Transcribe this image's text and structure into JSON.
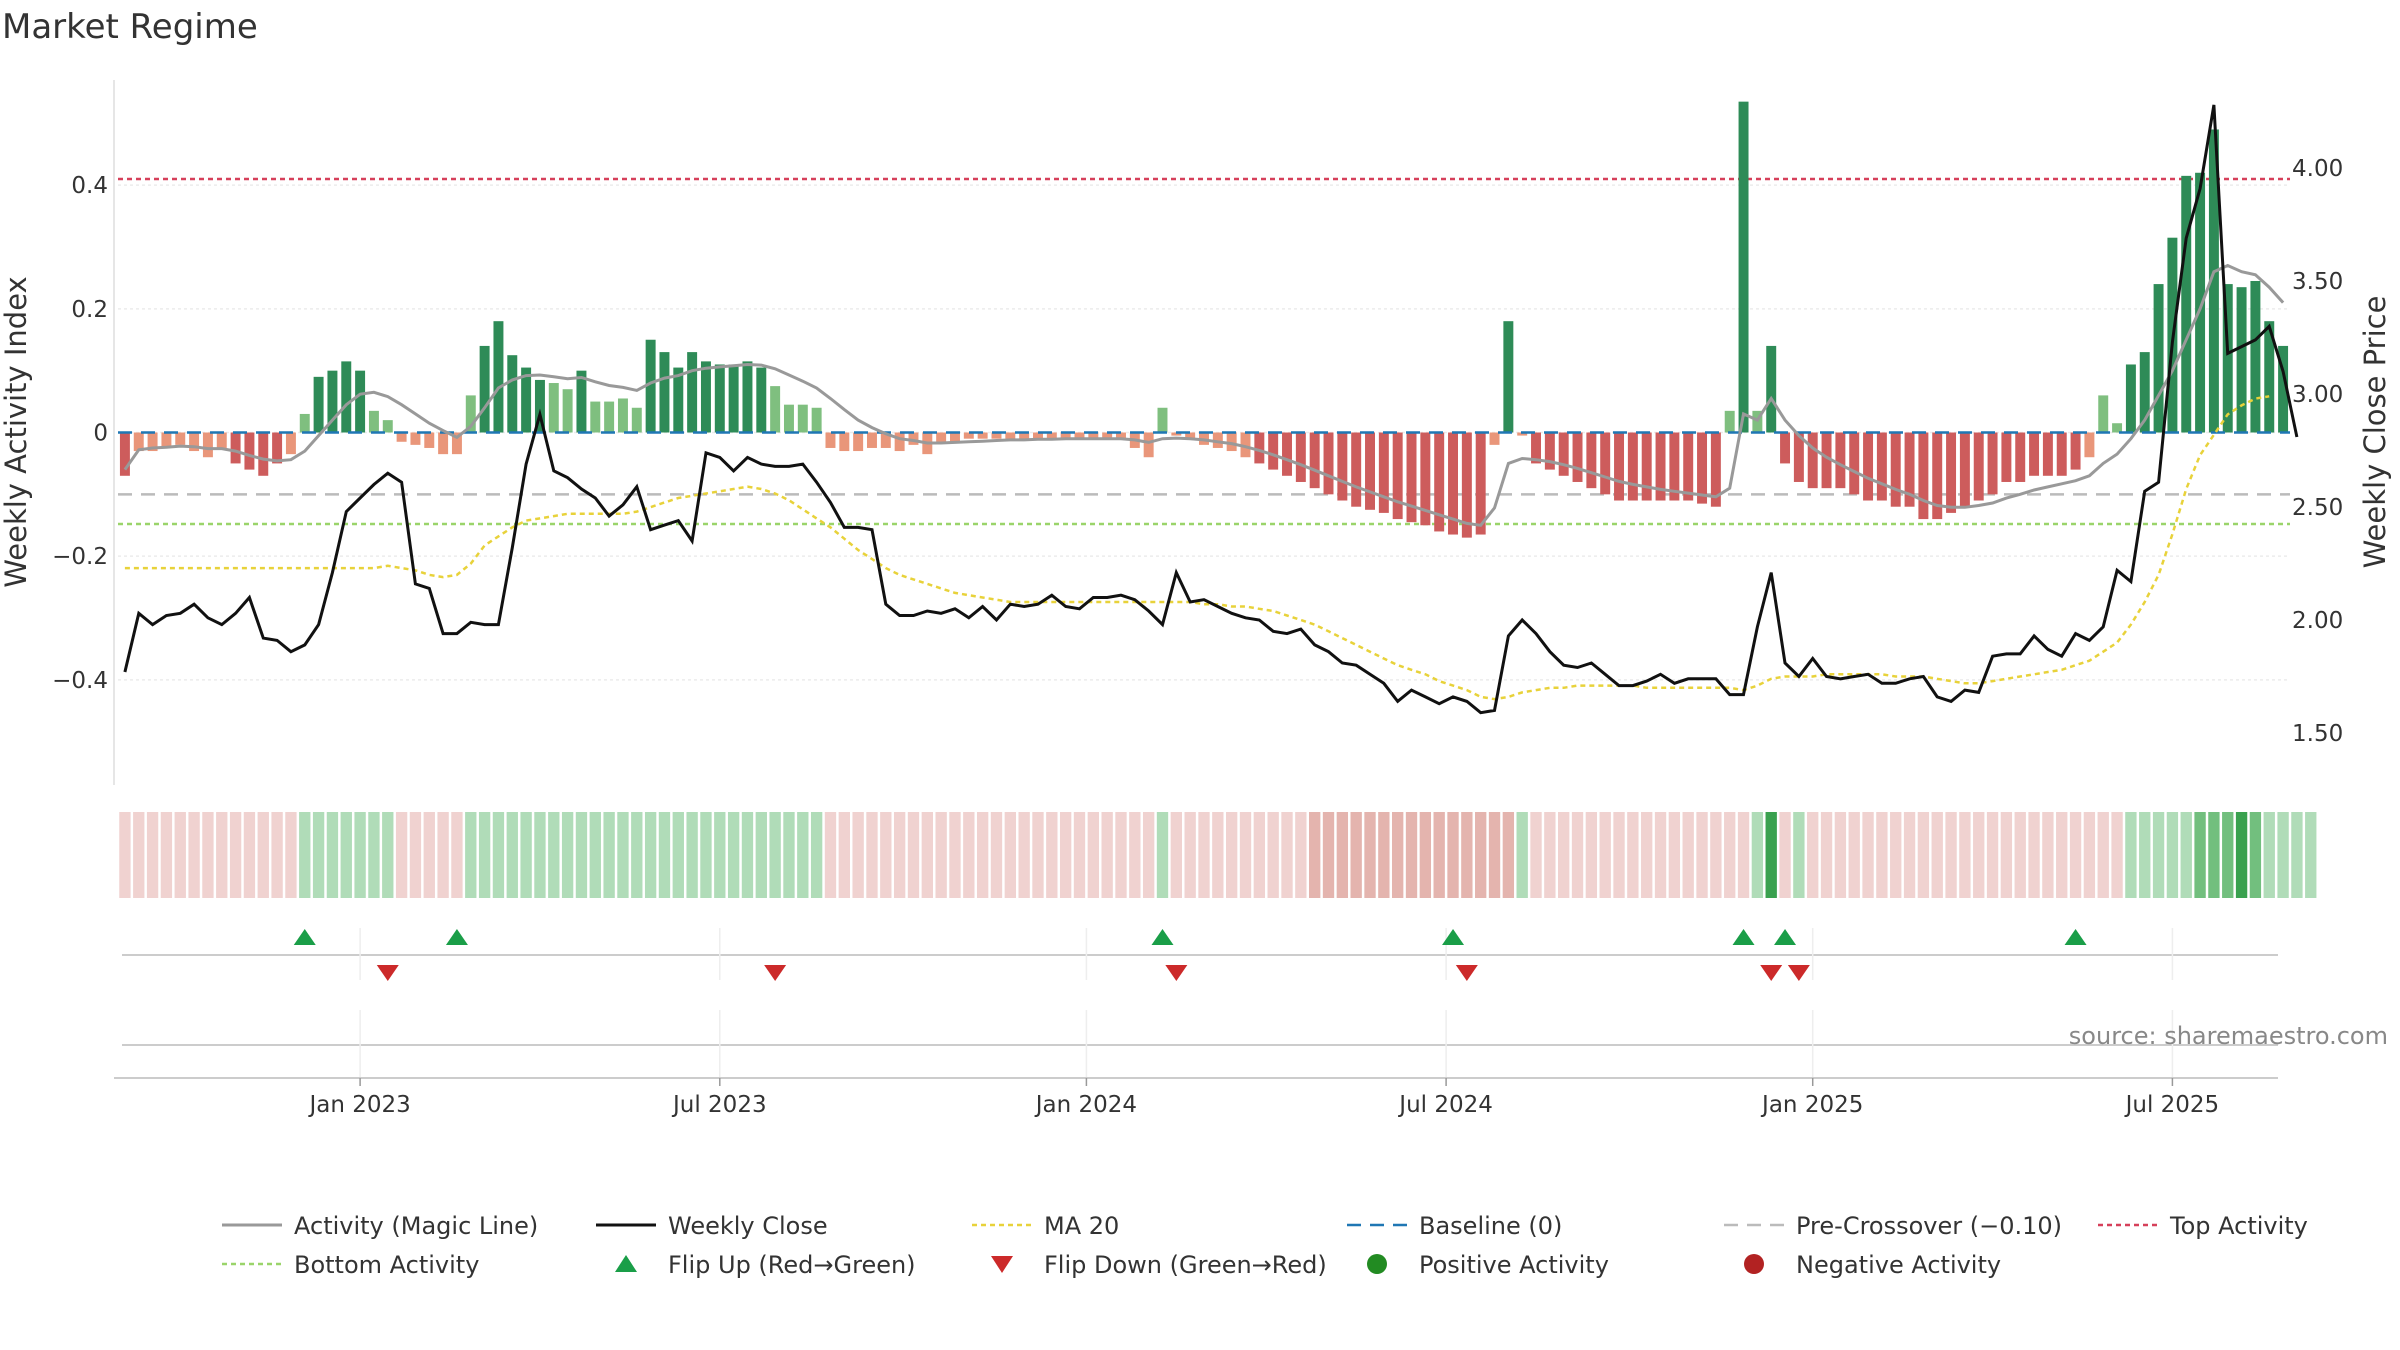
{
  "chart_data": {
    "type": "bar",
    "title": "Market Regime",
    "source": "source: sharemaestro.com",
    "y_left": {
      "label": "Weekly Activity Index",
      "range": [
        -0.57,
        0.57
      ],
      "ticks": [
        0.4,
        0.2,
        0,
        -0.2,
        -0.4
      ],
      "tick_labels": [
        "0.4",
        "0.2",
        "0",
        "−0.2",
        "−0.4"
      ]
    },
    "y_right": {
      "label": "Weekly Close Price",
      "range": [
        1.27,
        4.39
      ],
      "ticks": [
        4.0,
        3.5,
        3.0,
        2.5,
        2.0,
        1.5
      ],
      "tick_labels": [
        "4.00",
        "3.50",
        "3.00",
        "2.50",
        "2.00",
        "1.50"
      ]
    },
    "x_ticks": [
      {
        "label": "Jan 2023",
        "week": 17
      },
      {
        "label": "Jul 2023",
        "week": 43
      },
      {
        "label": "Jan 2024",
        "week": 69.5
      },
      {
        "label": "Jul 2024",
        "week": 95.5
      },
      {
        "label": "Jan 2025",
        "week": 122
      },
      {
        "label": "Jul 2025",
        "week": 148
      }
    ],
    "levels": {
      "top_activity": 0.41,
      "bottom_activity": -0.148,
      "pre_crossover": -0.1,
      "baseline": 0
    },
    "activity": [
      -0.07,
      -0.03,
      -0.03,
      -0.025,
      -0.02,
      -0.03,
      -0.04,
      -0.025,
      -0.05,
      -0.06,
      -0.07,
      -0.05,
      -0.035,
      0.03,
      0.09,
      0.1,
      0.115,
      0.1,
      0.035,
      0.02,
      -0.015,
      -0.02,
      -0.025,
      -0.035,
      -0.035,
      0.06,
      0.14,
      0.18,
      0.125,
      0.105,
      0.085,
      0.08,
      0.07,
      0.1,
      0.05,
      0.05,
      0.055,
      0.04,
      0.15,
      0.13,
      0.105,
      0.13,
      0.115,
      0.11,
      0.11,
      0.115,
      0.105,
      0.075,
      0.045,
      0.045,
      0.04,
      -0.025,
      -0.03,
      -0.03,
      -0.025,
      -0.025,
      -0.03,
      -0.02,
      -0.035,
      -0.015,
      -0.015,
      -0.01,
      -0.01,
      -0.01,
      -0.01,
      -0.01,
      -0.01,
      -0.01,
      -0.01,
      -0.01,
      -0.01,
      -0.01,
      -0.01,
      -0.025,
      -0.04,
      0.04,
      -0.005,
      -0.01,
      -0.02,
      -0.025,
      -0.03,
      -0.04,
      -0.05,
      -0.06,
      -0.07,
      -0.08,
      -0.09,
      -0.1,
      -0.11,
      -0.12,
      -0.125,
      -0.13,
      -0.14,
      -0.145,
      -0.15,
      -0.16,
      -0.165,
      -0.17,
      -0.165,
      -0.02,
      0.18,
      -0.005,
      -0.05,
      -0.06,
      -0.07,
      -0.08,
      -0.09,
      -0.1,
      -0.11,
      -0.11,
      -0.11,
      -0.11,
      -0.11,
      -0.11,
      -0.115,
      -0.12,
      0.035,
      0.535,
      0.035,
      0.14,
      -0.05,
      -0.08,
      -0.09,
      -0.09,
      -0.09,
      -0.1,
      -0.11,
      -0.11,
      -0.12,
      -0.12,
      -0.14,
      -0.14,
      -0.13,
      -0.12,
      -0.11,
      -0.1,
      -0.08,
      -0.08,
      -0.07,
      -0.07,
      -0.07,
      -0.06,
      -0.04,
      0.06,
      0.015,
      0.11,
      0.13,
      0.24,
      0.315,
      0.415,
      0.42,
      0.49,
      0.24,
      0.235,
      0.245,
      0.18,
      0.14
    ],
    "magic_line": [
      -0.06,
      -0.028,
      -0.025,
      -0.024,
      -0.022,
      -0.023,
      -0.026,
      -0.026,
      -0.03,
      -0.037,
      -0.043,
      -0.046,
      -0.044,
      -0.03,
      -0.005,
      0.02,
      0.045,
      0.062,
      0.065,
      0.058,
      0.045,
      0.03,
      0.015,
      0.003,
      -0.008,
      0.01,
      0.04,
      0.072,
      0.085,
      0.092,
      0.093,
      0.09,
      0.087,
      0.089,
      0.082,
      0.076,
      0.073,
      0.068,
      0.08,
      0.088,
      0.092,
      0.1,
      0.104,
      0.106,
      0.108,
      0.11,
      0.109,
      0.103,
      0.093,
      0.083,
      0.072,
      0.055,
      0.037,
      0.02,
      0.008,
      -0.002,
      -0.01,
      -0.013,
      -0.017,
      -0.017,
      -0.016,
      -0.015,
      -0.014,
      -0.013,
      -0.012,
      -0.012,
      -0.011,
      -0.011,
      -0.01,
      -0.01,
      -0.01,
      -0.01,
      -0.01,
      -0.012,
      -0.016,
      -0.01,
      -0.009,
      -0.01,
      -0.012,
      -0.015,
      -0.018,
      -0.023,
      -0.029,
      -0.036,
      -0.044,
      -0.052,
      -0.061,
      -0.07,
      -0.079,
      -0.088,
      -0.096,
      -0.104,
      -0.112,
      -0.119,
      -0.126,
      -0.133,
      -0.14,
      -0.147,
      -0.15,
      -0.122,
      -0.05,
      -0.042,
      -0.044,
      -0.047,
      -0.052,
      -0.058,
      -0.065,
      -0.072,
      -0.079,
      -0.084,
      -0.088,
      -0.092,
      -0.095,
      -0.098,
      -0.101,
      -0.104,
      -0.09,
      0.03,
      0.02,
      0.055,
      0.02,
      -0.005,
      -0.025,
      -0.04,
      -0.052,
      -0.063,
      -0.074,
      -0.083,
      -0.092,
      -0.1,
      -0.11,
      -0.118,
      -0.121,
      -0.121,
      -0.118,
      -0.114,
      -0.106,
      -0.1,
      -0.093,
      -0.088,
      -0.083,
      -0.078,
      -0.07,
      -0.05,
      -0.035,
      -0.01,
      0.02,
      0.06,
      0.1,
      0.15,
      0.2,
      0.26,
      0.27,
      0.26,
      0.255,
      0.235,
      0.21
    ],
    "close": [
      1.77,
      2.03,
      1.98,
      2.02,
      2.03,
      2.07,
      2.01,
      1.98,
      2.03,
      2.1,
      1.92,
      1.91,
      1.86,
      1.89,
      1.98,
      2.21,
      2.48,
      2.54,
      2.6,
      2.65,
      2.61,
      2.16,
      2.14,
      1.94,
      1.94,
      1.99,
      1.98,
      1.98,
      2.32,
      2.69,
      2.91,
      2.66,
      2.63,
      2.58,
      2.54,
      2.46,
      2.51,
      2.59,
      2.4,
      2.42,
      2.44,
      2.35,
      2.74,
      2.72,
      2.66,
      2.72,
      2.69,
      2.68,
      2.68,
      2.69,
      2.61,
      2.52,
      2.41,
      2.41,
      2.4,
      2.07,
      2.02,
      2.02,
      2.04,
      2.03,
      2.05,
      2.01,
      2.06,
      2.0,
      2.07,
      2.06,
      2.07,
      2.11,
      2.06,
      2.05,
      2.1,
      2.1,
      2.11,
      2.09,
      2.04,
      1.98,
      2.21,
      2.08,
      2.09,
      2.06,
      2.03,
      2.01,
      2.0,
      1.95,
      1.94,
      1.96,
      1.89,
      1.86,
      1.81,
      1.8,
      1.76,
      1.72,
      1.64,
      1.69,
      1.66,
      1.63,
      1.66,
      1.64,
      1.59,
      1.6,
      1.93,
      2.0,
      1.94,
      1.86,
      1.8,
      1.79,
      1.81,
      1.76,
      1.71,
      1.71,
      1.73,
      1.76,
      1.72,
      1.74,
      1.74,
      1.74,
      1.67,
      1.67,
      1.97,
      2.21,
      1.81,
      1.75,
      1.83,
      1.75,
      1.74,
      1.75,
      1.76,
      1.72,
      1.72,
      1.74,
      1.75,
      1.66,
      1.64,
      1.69,
      1.68,
      1.84,
      1.85,
      1.85,
      1.93,
      1.87,
      1.84,
      1.94,
      1.91,
      1.97,
      2.22,
      2.17,
      2.57,
      2.61,
      3.23,
      3.69,
      3.91,
      4.28,
      3.18,
      3.21,
      3.24,
      3.3,
      3.1,
      2.81
    ],
    "ma20": [
      2.23,
      2.23,
      2.23,
      2.23,
      2.23,
      2.23,
      2.23,
      2.23,
      2.23,
      2.23,
      2.23,
      2.23,
      2.23,
      2.23,
      2.23,
      2.23,
      2.23,
      2.23,
      2.23,
      2.24,
      2.23,
      2.22,
      2.2,
      2.19,
      2.2,
      2.25,
      2.33,
      2.37,
      2.41,
      2.44,
      2.45,
      2.46,
      2.47,
      2.47,
      2.47,
      2.47,
      2.47,
      2.48,
      2.5,
      2.52,
      2.54,
      2.55,
      2.56,
      2.57,
      2.58,
      2.59,
      2.58,
      2.56,
      2.53,
      2.49,
      2.45,
      2.41,
      2.36,
      2.31,
      2.27,
      2.23,
      2.2,
      2.18,
      2.16,
      2.14,
      2.12,
      2.11,
      2.1,
      2.09,
      2.08,
      2.08,
      2.08,
      2.08,
      2.08,
      2.08,
      2.08,
      2.08,
      2.08,
      2.08,
      2.08,
      2.08,
      2.08,
      2.08,
      2.07,
      2.07,
      2.06,
      2.06,
      2.05,
      2.04,
      2.02,
      2.0,
      1.98,
      1.95,
      1.92,
      1.89,
      1.86,
      1.83,
      1.8,
      1.78,
      1.76,
      1.73,
      1.71,
      1.69,
      1.66,
      1.65,
      1.66,
      1.68,
      1.69,
      1.7,
      1.7,
      1.71,
      1.71,
      1.71,
      1.71,
      1.71,
      1.7,
      1.7,
      1.7,
      1.7,
      1.7,
      1.7,
      1.7,
      1.69,
      1.71,
      1.74,
      1.75,
      1.75,
      1.75,
      1.76,
      1.76,
      1.76,
      1.76,
      1.76,
      1.75,
      1.75,
      1.75,
      1.74,
      1.73,
      1.72,
      1.72,
      1.73,
      1.74,
      1.75,
      1.76,
      1.77,
      1.78,
      1.8,
      1.82,
      1.86,
      1.9,
      1.98,
      2.08,
      2.2,
      2.38,
      2.58,
      2.73,
      2.82,
      2.91,
      2.95,
      2.98,
      2.99
    ]
  },
  "regime_strip": {
    "legend_note": "",
    "levels": [
      0,
      0,
      0,
      0,
      0,
      0,
      0,
      0,
      0,
      0,
      0,
      0,
      0,
      1,
      1,
      1,
      1,
      1,
      1,
      1,
      0,
      0,
      0,
      0,
      0,
      1,
      1,
      1,
      1,
      1,
      1,
      1,
      1,
      1,
      1,
      1,
      1,
      1,
      1,
      1,
      1,
      1,
      1,
      1,
      1,
      1,
      1,
      1,
      1,
      1,
      1,
      0,
      0,
      0,
      0,
      0,
      0,
      0,
      0,
      0,
      0,
      0,
      0,
      0,
      0,
      0,
      0,
      0,
      0,
      0,
      0,
      0,
      0,
      0,
      0,
      1,
      0,
      0,
      0,
      0,
      0,
      0,
      0,
      0,
      0,
      0,
      -1,
      -1,
      -1,
      -1,
      -1,
      -1,
      -1,
      -1,
      -1,
      -1,
      -1,
      -1,
      -1,
      -1,
      -1,
      1,
      0,
      0,
      0,
      0,
      0,
      0,
      0,
      0,
      0,
      0,
      0,
      0,
      0,
      0,
      0,
      0,
      1,
      3,
      0,
      1,
      0,
      0,
      0,
      0,
      0,
      0,
      0,
      0,
      0,
      0,
      0,
      0,
      0,
      0,
      0,
      0,
      0,
      0,
      0,
      0,
      0,
      0,
      0,
      1,
      1,
      1,
      1,
      1,
      2,
      2,
      2,
      3,
      2,
      1,
      1,
      1,
      1
    ]
  },
  "flips": {
    "up_weeks": [
      13,
      24,
      75,
      96,
      117,
      120,
      141
    ],
    "down_weeks": [
      19,
      47,
      76,
      97,
      119,
      121
    ]
  },
  "legend": [
    {
      "key": "magic",
      "label": "Activity (Magic Line)"
    },
    {
      "key": "close",
      "label": "Weekly Close"
    },
    {
      "key": "ma20",
      "label": "MA 20"
    },
    {
      "key": "baseline",
      "label": "Baseline (0)"
    },
    {
      "key": "precross",
      "label": "Pre-Crossover (−0.10)"
    },
    {
      "key": "top",
      "label": "Top Activity"
    },
    {
      "key": "bottom",
      "label": "Bottom Activity"
    },
    {
      "key": "flipup",
      "label": "Flip Up (Red→Green)"
    },
    {
      "key": "flipdown",
      "label": "Flip Down (Green→Red)"
    },
    {
      "key": "posact",
      "label": "Positive Activity"
    },
    {
      "key": "negact",
      "label": "Negative Activity"
    }
  ],
  "colors": {
    "pos_strong": "#2e8b57",
    "pos_light": "#7fbf7f",
    "neg_strong": "#cd5c5c",
    "neg_light": "#e9967a",
    "magic": "#999999",
    "close": "#111111",
    "ma20": "#e8d23a",
    "baseline": "#1f77b4",
    "precross": "#bbbbbb",
    "top": "#d6405a",
    "bottom": "#9ad46a",
    "flip_up": "#1a9e48",
    "flip_down": "#cc2a2a",
    "pos_dot": "#228b22",
    "neg_dot": "#b22222"
  }
}
